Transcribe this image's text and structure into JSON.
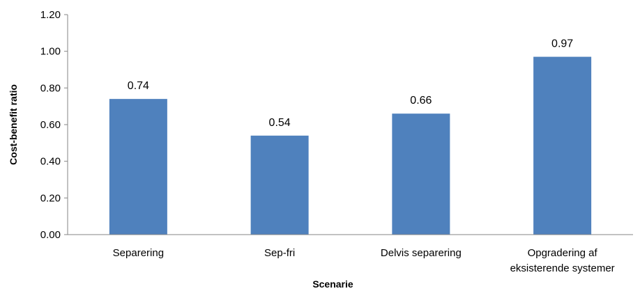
{
  "chart_data": {
    "type": "bar",
    "title": "",
    "xlabel": "Scenarie",
    "ylabel": "Cost-benefit ratio",
    "ylim": [
      0,
      1.2
    ],
    "yticks": [
      "0.00",
      "0.20",
      "0.40",
      "0.60",
      "0.80",
      "1.00",
      "1.20"
    ],
    "categories": [
      [
        "Separering"
      ],
      [
        "Sep-fri"
      ],
      [
        "Delvis separering"
      ],
      [
        "Opgradering af",
        "eksisterende systemer"
      ]
    ],
    "values": [
      0.74,
      0.54,
      0.66,
      0.97
    ],
    "data_labels": [
      "0.74",
      "0.54",
      "0.66",
      "0.97"
    ],
    "bar_color": "#4F81BD",
    "grid": false,
    "legend": "none"
  }
}
